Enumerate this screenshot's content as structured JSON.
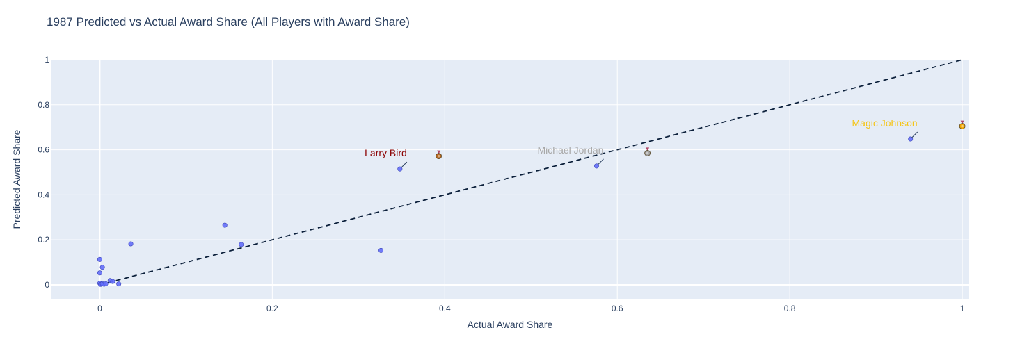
{
  "chart_data": {
    "type": "scatter",
    "title": "1987 Predicted vs Actual Award Share (All Players with Award Share)",
    "xlabel": "Actual Award Share",
    "ylabel": "Predicted Award Share",
    "xlim": [
      -0.056,
      1.008
    ],
    "ylim": [
      -0.065,
      1.0
    ],
    "x_ticks": [
      0,
      0.2,
      0.4,
      0.6,
      0.8,
      1
    ],
    "x_tick_labels": [
      "0",
      "0.2",
      "0.4",
      "0.6",
      "0.8",
      "1"
    ],
    "y_ticks": [
      0,
      0.2,
      0.4,
      0.6,
      0.8,
      1
    ],
    "y_tick_labels": [
      "0",
      "0.2",
      "0.4",
      "0.6",
      "0.8",
      "1"
    ],
    "grid": true,
    "legend": "none",
    "point_color": "#636efa",
    "background_color": "#e5ecf6",
    "reference_line": {
      "style": "dashed",
      "color": "#0b1f3a",
      "x": [
        0,
        1
      ],
      "y": [
        0,
        1
      ]
    },
    "points": [
      {
        "x": 0.0,
        "y": 0.113
      },
      {
        "x": 0.003,
        "y": 0.078
      },
      {
        "x": 0.0,
        "y": 0.053
      },
      {
        "x": 0.0,
        "y": 0.007
      },
      {
        "x": 0.001,
        "y": 0.002
      },
      {
        "x": 0.003,
        "y": 0.005
      },
      {
        "x": 0.005,
        "y": 0.003
      },
      {
        "x": 0.007,
        "y": 0.005
      },
      {
        "x": 0.012,
        "y": 0.019
      },
      {
        "x": 0.015,
        "y": 0.015
      },
      {
        "x": 0.022,
        "y": 0.004
      },
      {
        "x": 0.036,
        "y": 0.182
      },
      {
        "x": 0.145,
        "y": 0.265
      },
      {
        "x": 0.164,
        "y": 0.179
      },
      {
        "x": 0.326,
        "y": 0.153
      },
      {
        "x": 0.348,
        "y": 0.515
      },
      {
        "x": 0.576,
        "y": 0.528
      },
      {
        "x": 0.94,
        "y": 0.648
      }
    ],
    "annotations": [
      {
        "text": "Magic Johnson",
        "x": 0.94,
        "y": 0.648,
        "color": "#f5c518",
        "medal": "gold-medal",
        "medal_x": 1.0,
        "medal_y": 0.705,
        "medal_color": "#f0a500"
      },
      {
        "text": "Michael Jordan",
        "x": 0.576,
        "y": 0.528,
        "color": "#a8a8a8",
        "medal": "silver-medal",
        "medal_x": 0.635,
        "medal_y": 0.585,
        "medal_color": "#9e9e9e"
      },
      {
        "text": "Larry Bird",
        "x": 0.348,
        "y": 0.515,
        "color": "#8b0000",
        "medal": "bronze-medal",
        "medal_x": 0.393,
        "medal_y": 0.572,
        "medal_color": "#b5651d"
      }
    ]
  }
}
